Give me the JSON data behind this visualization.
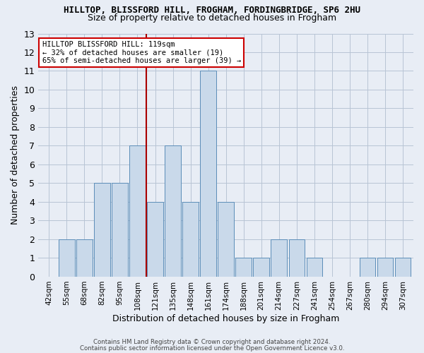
{
  "title_line1": "HILLTOP, BLISSFORD HILL, FROGHAM, FORDINGBRIDGE, SP6 2HU",
  "title_line2": "Size of property relative to detached houses in Frogham",
  "xlabel": "Distribution of detached houses by size in Frogham",
  "ylabel": "Number of detached properties",
  "bar_labels": [
    "42sqm",
    "55sqm",
    "68sqm",
    "82sqm",
    "95sqm",
    "108sqm",
    "121sqm",
    "135sqm",
    "148sqm",
    "161sqm",
    "174sqm",
    "188sqm",
    "201sqm",
    "214sqm",
    "227sqm",
    "241sqm",
    "254sqm",
    "267sqm",
    "280sqm",
    "294sqm",
    "307sqm"
  ],
  "bar_values": [
    0,
    2,
    2,
    5,
    5,
    7,
    4,
    7,
    4,
    11,
    4,
    1,
    1,
    2,
    2,
    1,
    0,
    0,
    1,
    1,
    1
  ],
  "bar_color": "#c9d9ea",
  "bar_edgecolor": "#5b8db8",
  "vline_x": 6,
  "annotation_text": "HILLTOP BLISSFORD HILL: 119sqm\n← 32% of detached houses are smaller (19)\n65% of semi-detached houses are larger (39) →",
  "annotation_box_color": "white",
  "annotation_box_edgecolor": "#cc0000",
  "vline_color": "#aa0000",
  "ylim": [
    0,
    13
  ],
  "yticks": [
    0,
    1,
    2,
    3,
    4,
    5,
    6,
    7,
    8,
    9,
    10,
    11,
    12,
    13
  ],
  "grid_color": "#b8c4d4",
  "background_color": "#e8edf5",
  "footer_line1": "Contains HM Land Registry data © Crown copyright and database right 2024.",
  "footer_line2": "Contains public sector information licensed under the Open Government Licence v3.0."
}
